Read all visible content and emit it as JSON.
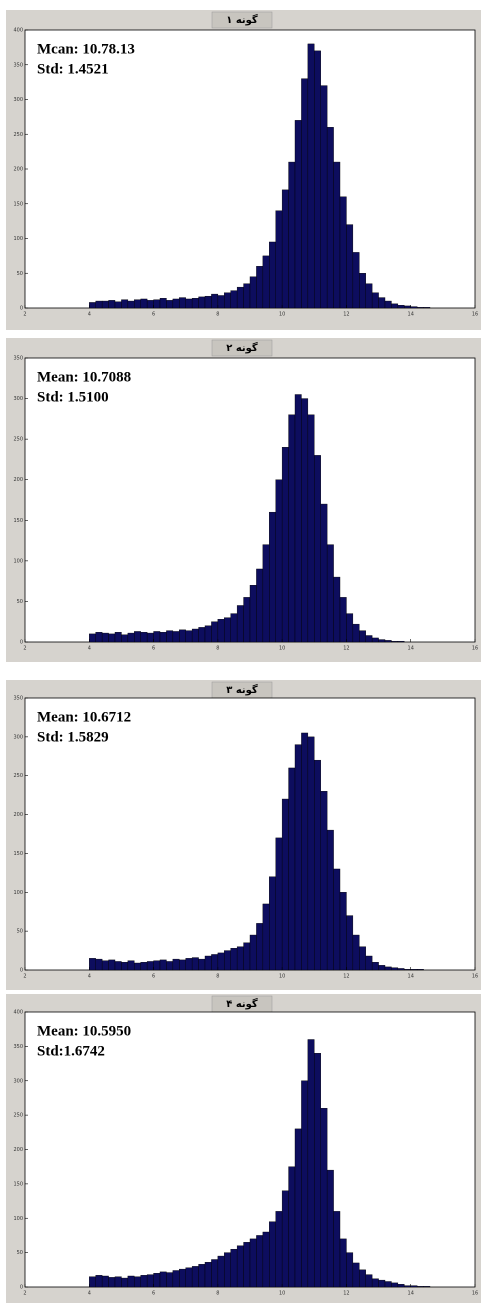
{
  "chart_data": [
    {
      "type": "histogram",
      "title": "گونه ۱",
      "annotations": [
        "Mcan: 10.78.13",
        "Std: 1.4521"
      ],
      "color": "#0d0d5e",
      "xlim": [
        2,
        16
      ],
      "xticks": [
        2,
        4,
        6,
        8,
        10,
        12,
        14,
        16
      ],
      "ylim": [
        0,
        400
      ],
      "yticks": [
        0,
        50,
        100,
        150,
        200,
        250,
        300,
        350,
        400
      ],
      "bins": [
        4,
        4.2,
        4.4,
        4.6,
        4.8,
        5,
        5.2,
        5.4,
        5.6,
        5.8,
        6,
        6.2,
        6.4,
        6.6,
        6.8,
        7,
        7.2,
        7.4,
        7.6,
        7.8,
        8,
        8.2,
        8.4,
        8.6,
        8.8,
        9,
        9.2,
        9.4,
        9.6,
        9.8,
        10,
        10.2,
        10.4,
        10.6,
        10.8,
        11,
        11.2,
        11.4,
        11.6,
        11.8,
        12,
        12.2,
        12.4,
        12.6,
        12.8,
        13,
        13.2,
        13.4,
        13.6,
        13.8,
        14,
        14.2,
        14.4,
        14.6
      ],
      "counts": [
        8,
        10,
        10,
        11,
        9,
        12,
        10,
        12,
        13,
        11,
        12,
        14,
        11,
        13,
        15,
        13,
        14,
        16,
        17,
        20,
        18,
        22,
        25,
        30,
        35,
        45,
        60,
        75,
        95,
        140,
        170,
        210,
        270,
        330,
        380,
        370,
        320,
        260,
        210,
        160,
        120,
        80,
        50,
        35,
        22,
        15,
        10,
        6,
        4,
        3,
        2,
        1,
        1
      ]
    },
    {
      "type": "histogram",
      "title": "گونه ۲",
      "annotations": [
        "Mean: 10.7088",
        "Std: 1.5100"
      ],
      "color": "#0d0d5e",
      "xlim": [
        2,
        16
      ],
      "xticks": [
        2,
        4,
        6,
        8,
        10,
        12,
        14,
        16
      ],
      "ylim": [
        0,
        350
      ],
      "yticks": [
        0,
        50,
        100,
        150,
        200,
        250,
        300,
        350
      ],
      "bins": [
        4,
        4.2,
        4.4,
        4.6,
        4.8,
        5,
        5.2,
        5.4,
        5.6,
        5.8,
        6,
        6.2,
        6.4,
        6.6,
        6.8,
        7,
        7.2,
        7.4,
        7.6,
        7.8,
        8,
        8.2,
        8.4,
        8.6,
        8.8,
        9,
        9.2,
        9.4,
        9.6,
        9.8,
        10,
        10.2,
        10.4,
        10.6,
        10.8,
        11,
        11.2,
        11.4,
        11.6,
        11.8,
        12,
        12.2,
        12.4,
        12.6,
        12.8,
        13,
        13.2,
        13.4,
        13.6,
        13.8,
        14,
        14.2,
        14.4,
        14.6
      ],
      "counts": [
        10,
        12,
        11,
        10,
        12,
        9,
        11,
        13,
        12,
        11,
        13,
        12,
        14,
        13,
        15,
        14,
        16,
        18,
        20,
        25,
        28,
        30,
        35,
        45,
        55,
        70,
        90,
        120,
        160,
        200,
        240,
        280,
        305,
        300,
        280,
        230,
        170,
        120,
        80,
        55,
        35,
        22,
        14,
        8,
        5,
        3,
        2,
        1,
        1,
        0,
        0,
        0,
        0
      ]
    },
    {
      "type": "histogram",
      "title": "گونه ۳",
      "annotations": [
        "Mean: 10.6712",
        "Std: 1.5829"
      ],
      "color": "#0d0d5e",
      "xlim": [
        2,
        16
      ],
      "xticks": [
        2,
        4,
        6,
        8,
        10,
        12,
        14,
        16
      ],
      "ylim": [
        0,
        350
      ],
      "yticks": [
        0,
        50,
        100,
        150,
        200,
        250,
        300,
        350
      ],
      "bins": [
        4,
        4.2,
        4.4,
        4.6,
        4.8,
        5,
        5.2,
        5.4,
        5.6,
        5.8,
        6,
        6.2,
        6.4,
        6.6,
        6.8,
        7,
        7.2,
        7.4,
        7.6,
        7.8,
        8,
        8.2,
        8.4,
        8.6,
        8.8,
        9,
        9.2,
        9.4,
        9.6,
        9.8,
        10,
        10.2,
        10.4,
        10.6,
        10.8,
        11,
        11.2,
        11.4,
        11.6,
        11.8,
        12,
        12.2,
        12.4,
        12.6,
        12.8,
        13,
        13.2,
        13.4,
        13.6,
        13.8,
        14,
        14.2,
        14.4,
        14.6
      ],
      "counts": [
        15,
        14,
        12,
        13,
        11,
        10,
        12,
        9,
        10,
        11,
        12,
        13,
        11,
        14,
        13,
        15,
        16,
        14,
        18,
        20,
        22,
        25,
        28,
        30,
        35,
        45,
        60,
        85,
        120,
        170,
        220,
        260,
        290,
        305,
        300,
        270,
        230,
        180,
        130,
        100,
        70,
        45,
        30,
        18,
        10,
        6,
        4,
        3,
        2,
        1,
        1,
        1,
        0
      ]
    },
    {
      "type": "histogram",
      "title": "گونه ۴",
      "annotations": [
        "Mean: 10.5950",
        "Std:1.6742"
      ],
      "color": "#0d0d5e",
      "xlim": [
        2,
        16
      ],
      "xticks": [
        2,
        4,
        6,
        8,
        10,
        12,
        14,
        16
      ],
      "ylim": [
        0,
        400
      ],
      "yticks": [
        0,
        50,
        100,
        150,
        200,
        250,
        300,
        350,
        400
      ],
      "bins": [
        4,
        4.2,
        4.4,
        4.6,
        4.8,
        5,
        5.2,
        5.4,
        5.6,
        5.8,
        6,
        6.2,
        6.4,
        6.6,
        6.8,
        7,
        7.2,
        7.4,
        7.6,
        7.8,
        8,
        8.2,
        8.4,
        8.6,
        8.8,
        9,
        9.2,
        9.4,
        9.6,
        9.8,
        10,
        10.2,
        10.4,
        10.6,
        10.8,
        11,
        11.2,
        11.4,
        11.6,
        11.8,
        12,
        12.2,
        12.4,
        12.6,
        12.8,
        13,
        13.2,
        13.4,
        13.6,
        13.8,
        14,
        14.2,
        14.4,
        14.6
      ],
      "counts": [
        15,
        17,
        16,
        14,
        15,
        13,
        16,
        15,
        17,
        18,
        20,
        22,
        21,
        24,
        26,
        28,
        30,
        33,
        36,
        40,
        45,
        50,
        55,
        60,
        65,
        70,
        75,
        80,
        95,
        110,
        140,
        175,
        230,
        300,
        360,
        340,
        260,
        170,
        110,
        70,
        50,
        35,
        25,
        18,
        12,
        10,
        8,
        6,
        4,
        2,
        2,
        1,
        1
      ]
    }
  ]
}
